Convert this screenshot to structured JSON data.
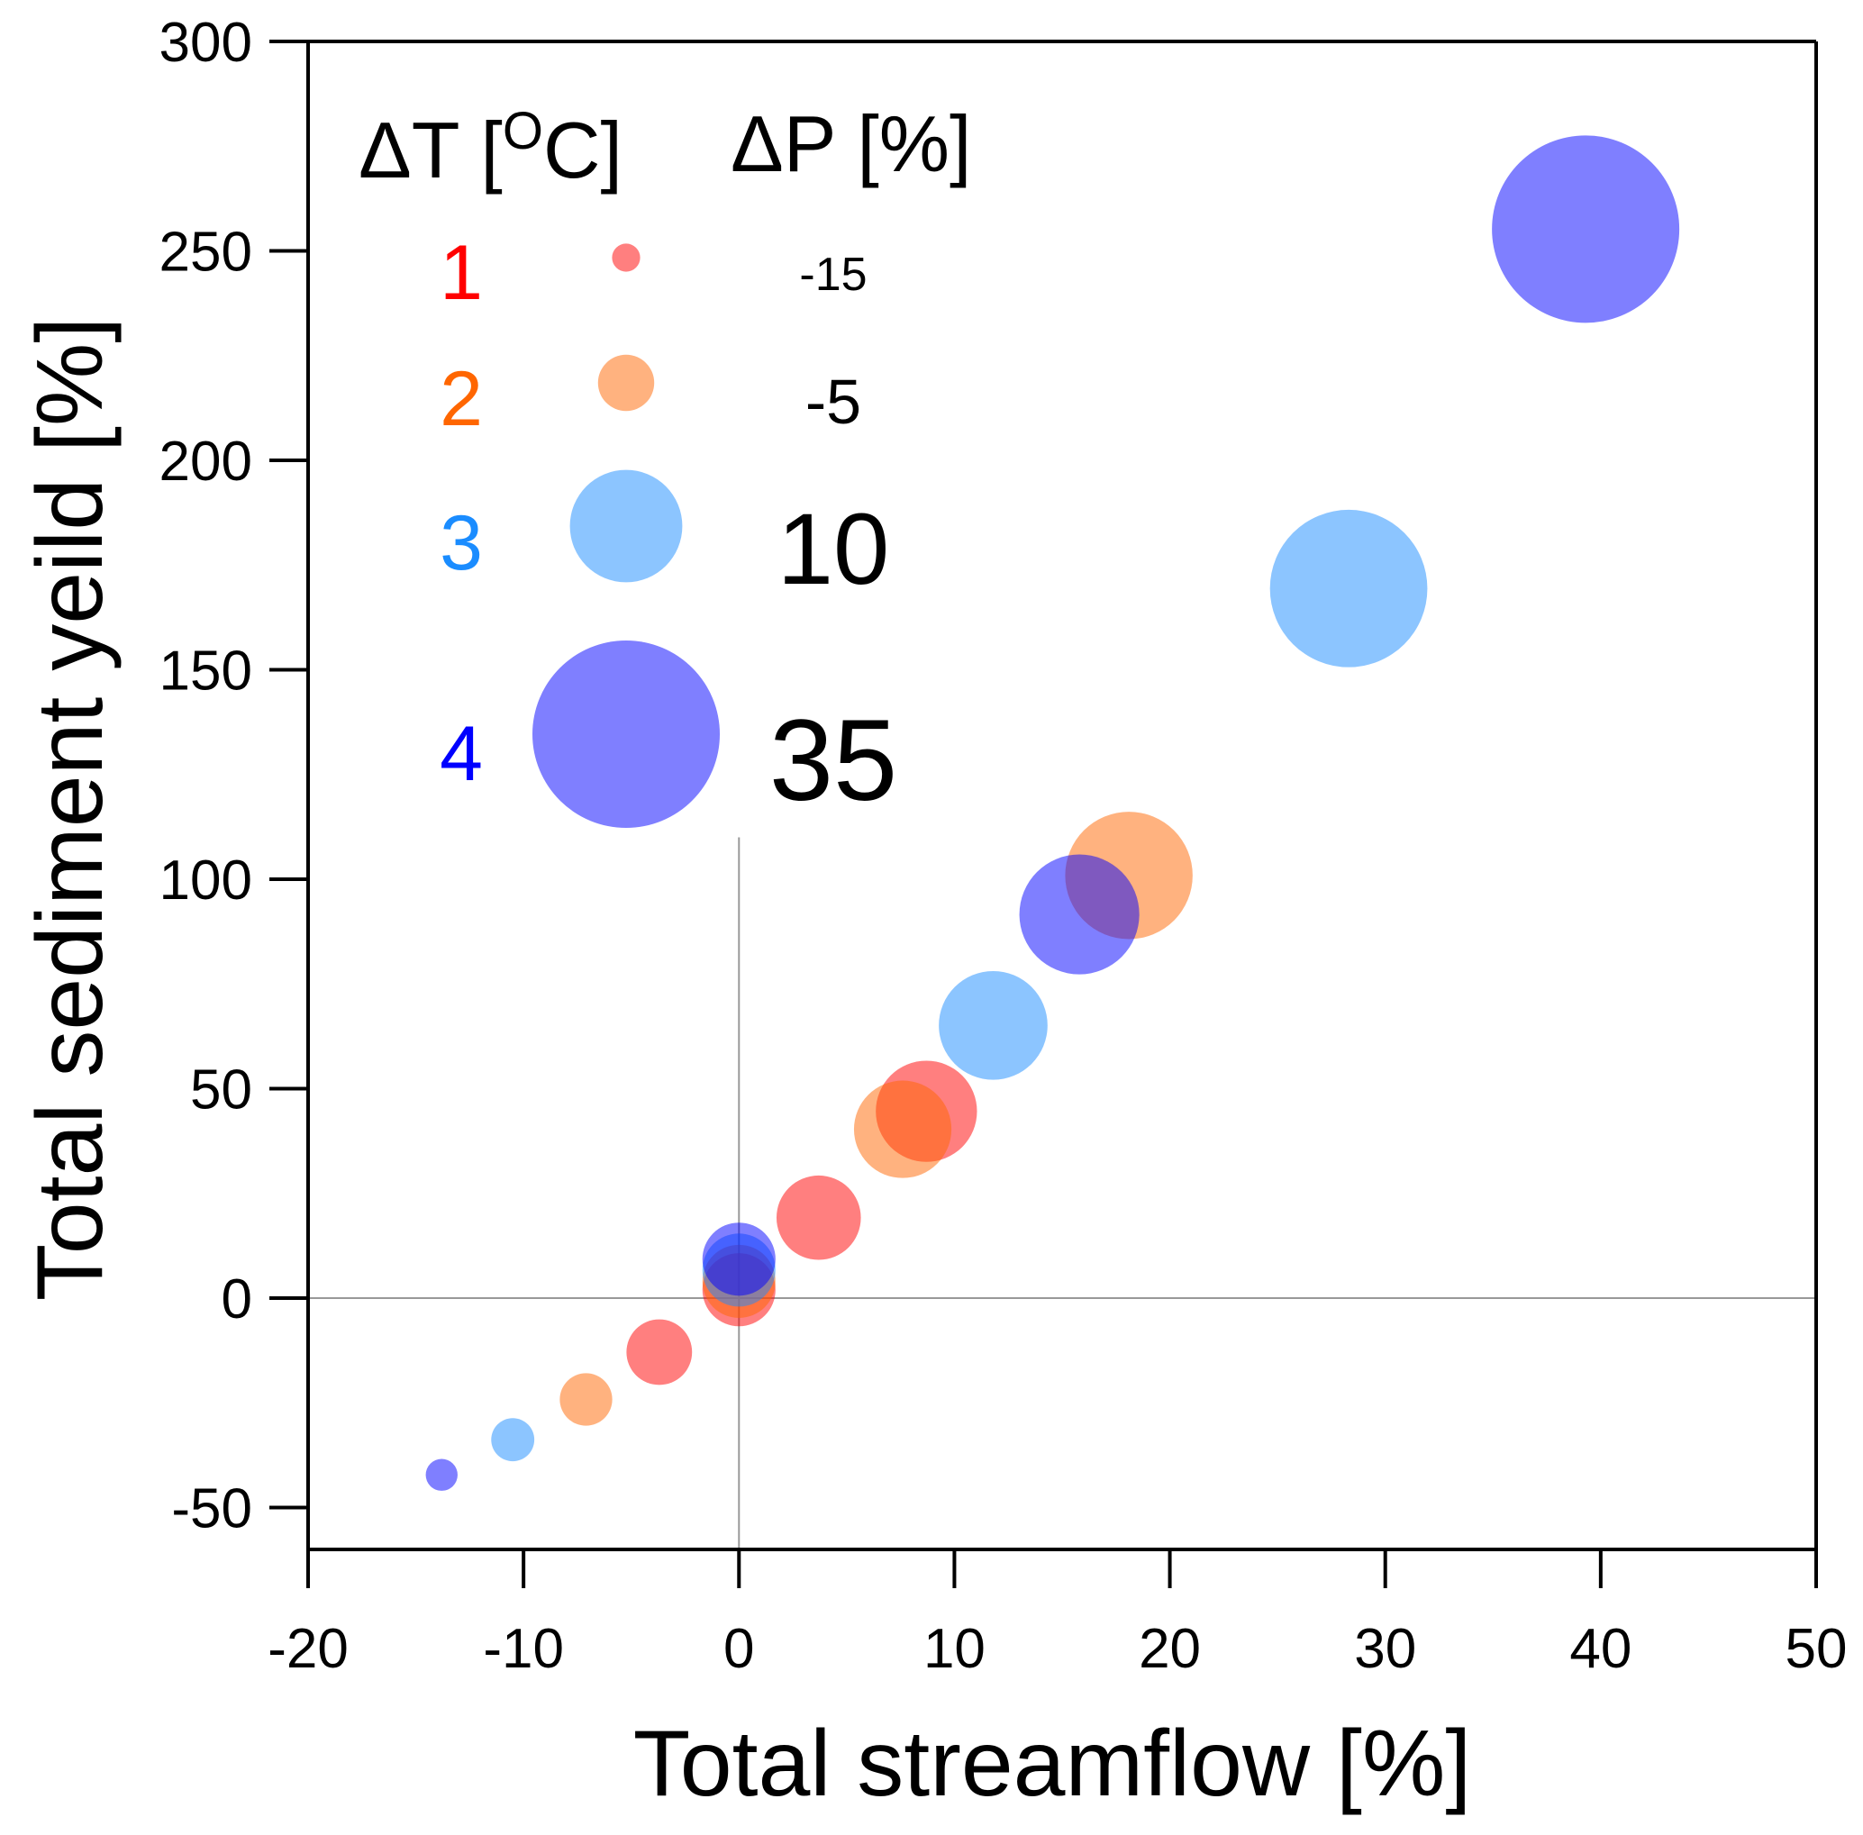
{
  "chart_data": {
    "type": "scatter",
    "subtype": "bubble",
    "title": "",
    "xlabel": "Total streamflow [%]",
    "ylabel": "Total sediment yeild [%]",
    "xlim": [
      -20,
      50
    ],
    "ylim": [
      -60,
      300
    ],
    "x_ticks": [
      -20,
      -10,
      0,
      10,
      20,
      30,
      40,
      50
    ],
    "y_ticks": [
      -50,
      0,
      50,
      100,
      150,
      200,
      250,
      300
    ],
    "x_tick_labels": [
      "-20",
      "-10",
      "0",
      "10",
      "20",
      "30",
      "40",
      "50"
    ],
    "y_tick_labels": [
      "-50",
      "0",
      "50",
      "100",
      "150",
      "200",
      "250",
      "300"
    ],
    "grid": false,
    "reference_lines": [
      {
        "orientation": "horizontal",
        "value": 0,
        "from": -20,
        "to": 50
      },
      {
        "orientation": "vertical",
        "value": 0,
        "from": -60,
        "to": 110
      }
    ],
    "size_note": "bubble size relative to the ΔP=35 legend bubble (=1.0)",
    "legend": {
      "position": "top-left",
      "dt_header": "ΔT [",
      "dt_header_sup": "O",
      "dt_header_end": "C]",
      "dp_header": "ΔP [%]",
      "dt_entries": [
        {
          "label": "1",
          "color": "#ff0000"
        },
        {
          "label": "2",
          "color": "#ff6600"
        },
        {
          "label": "3",
          "color": "#1a8cff"
        },
        {
          "label": "4",
          "color": "#0000ff"
        }
      ],
      "dp_entries": [
        {
          "label": "-15",
          "size": 0.15,
          "color": "#ff0000"
        },
        {
          "label": "-5",
          "size": 0.3,
          "color": "#ff6600"
        },
        {
          "label": "10",
          "size": 0.6,
          "color": "#1a8cff"
        },
        {
          "label": "35",
          "size": 1.0,
          "color": "#0000ff"
        }
      ]
    },
    "series": [
      {
        "name": "ΔT = 1",
        "color": "#ff0000",
        "points": [
          {
            "x": -3.7,
            "y": -12.9,
            "size": 0.35
          },
          {
            "x": 0.0,
            "y": 2.0,
            "size": 0.39
          },
          {
            "x": 3.7,
            "y": 19.2,
            "size": 0.45
          },
          {
            "x": 8.7,
            "y": 44.6,
            "size": 0.54
          }
        ]
      },
      {
        "name": "ΔT = 2",
        "color": "#ff6600",
        "points": [
          {
            "x": -7.1,
            "y": -24.2,
            "size": 0.28
          },
          {
            "x": 0.0,
            "y": 4.0,
            "size": 0.39
          },
          {
            "x": 7.6,
            "y": 40.3,
            "size": 0.52
          },
          {
            "x": 18.1,
            "y": 100.9,
            "size": 0.68
          }
        ]
      },
      {
        "name": "ΔT = 3",
        "color": "#1a8cff",
        "points": [
          {
            "x": -10.5,
            "y": -33.8,
            "size": 0.23
          },
          {
            "x": 0.0,
            "y": 6.7,
            "size": 0.39
          },
          {
            "x": 11.8,
            "y": 65.1,
            "size": 0.58
          },
          {
            "x": 28.3,
            "y": 169.4,
            "size": 0.84
          }
        ]
      },
      {
        "name": "ΔT = 4",
        "color": "#0000ff",
        "points": [
          {
            "x": -13.8,
            "y": -42.2,
            "size": 0.17
          },
          {
            "x": 0.0,
            "y": 9.3,
            "size": 0.39
          },
          {
            "x": 15.8,
            "y": 91.6,
            "size": 0.64
          },
          {
            "x": 39.3,
            "y": 255.2,
            "size": 1.0
          }
        ]
      }
    ]
  }
}
